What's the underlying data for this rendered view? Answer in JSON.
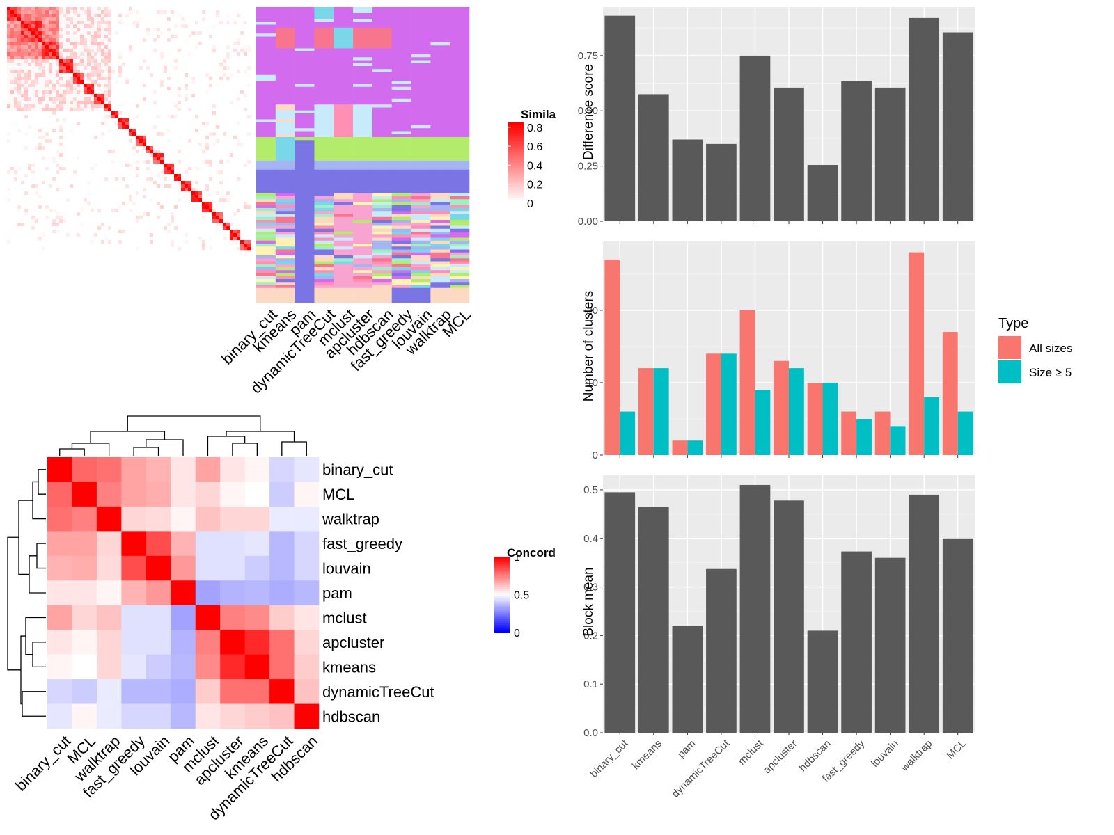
{
  "methods": [
    "binary_cut",
    "kmeans",
    "pam",
    "dynamicTreeCut",
    "mclust",
    "apcluster",
    "hdbscan",
    "fast_greedy",
    "louvain",
    "walktrap",
    "MCL"
  ],
  "colors": {
    "panel_bg": "#EBEBEB",
    "bar_dark": "#595959",
    "all_sizes": "#F8766D",
    "size_ge5": "#00BFC4",
    "heat_high": "#FF0000",
    "heat_mid": "#FFFFFF",
    "heat_low": "#0000FF"
  },
  "similarity_legend": {
    "title": "Simila",
    "ticks": [
      "0.8",
      "0.6",
      "0.4",
      "0.2",
      "0"
    ]
  },
  "concordance_legend": {
    "title": "Concord",
    "ticks": [
      "1",
      "0.5",
      "0"
    ]
  },
  "membership_palette": [
    "#D36BEF",
    "#F7768D",
    "#79D7E8",
    "#B3EC6A",
    "#A5B5F2",
    "#7B74E5",
    "#FFF2B3",
    "#F9A3D1",
    "#FCD9C2",
    "#C7EBFB",
    "#FF8FB5",
    "#9FEFC3"
  ],
  "chart_data": [
    {
      "type": "heatmap",
      "panel": "similarity-matrix",
      "legend_title": "Simila",
      "value_range": [
        0,
        0.85
      ],
      "n_terms": 200,
      "blocks_start_fraction": [
        0.0,
        0.06,
        0.14,
        0.22,
        0.27,
        0.32,
        0.36,
        0.4,
        0.43,
        0.46,
        0.5,
        0.53,
        0.57,
        0.6,
        0.64,
        0.68,
        0.72,
        0.76,
        0.8,
        0.84,
        0.88,
        0.92,
        0.95
      ]
    },
    {
      "type": "heatmap",
      "panel": "cluster-membership",
      "columns": [
        "binary_cut",
        "kmeans",
        "pam",
        "dynamicTreeCut",
        "mclust",
        "apcluster",
        "hdbscan",
        "fast_greedy",
        "louvain",
        "walktrap",
        "MCL"
      ]
    },
    {
      "type": "heatmap",
      "panel": "concordance",
      "legend_title": "Concord",
      "rows": [
        "binary_cut",
        "MCL",
        "walktrap",
        "fast_greedy",
        "louvain",
        "pam",
        "mclust",
        "apcluster",
        "kmeans",
        "dynamicTreeCut",
        "hdbscan"
      ],
      "columns": [
        "binary_cut",
        "MCL",
        "walktrap",
        "fast_greedy",
        "louvain",
        "pam",
        "mclust",
        "apcluster",
        "kmeans",
        "dynamicTreeCut",
        "hdbscan"
      ],
      "values": [
        [
          1.0,
          0.8,
          0.78,
          0.68,
          0.65,
          0.55,
          0.68,
          0.55,
          0.52,
          0.42,
          0.45
        ],
        [
          0.8,
          1.0,
          0.75,
          0.68,
          0.66,
          0.55,
          0.58,
          0.52,
          0.5,
          0.4,
          0.52
        ],
        [
          0.78,
          0.75,
          1.0,
          0.58,
          0.57,
          0.52,
          0.62,
          0.58,
          0.58,
          0.46,
          0.46
        ],
        [
          0.68,
          0.68,
          0.58,
          1.0,
          0.85,
          0.65,
          0.44,
          0.44,
          0.45,
          0.36,
          0.42
        ],
        [
          0.65,
          0.66,
          0.57,
          0.85,
          1.0,
          0.7,
          0.44,
          0.44,
          0.4,
          0.36,
          0.42
        ],
        [
          0.55,
          0.55,
          0.52,
          0.65,
          0.7,
          1.0,
          0.32,
          0.35,
          0.36,
          0.34,
          0.36
        ],
        [
          0.68,
          0.58,
          0.62,
          0.44,
          0.44,
          0.32,
          1.0,
          0.75,
          0.73,
          0.6,
          0.55
        ],
        [
          0.55,
          0.52,
          0.58,
          0.44,
          0.44,
          0.35,
          0.75,
          1.0,
          0.92,
          0.78,
          0.58
        ],
        [
          0.52,
          0.5,
          0.58,
          0.45,
          0.4,
          0.36,
          0.73,
          0.92,
          1.0,
          0.78,
          0.6
        ],
        [
          0.42,
          0.4,
          0.46,
          0.36,
          0.36,
          0.34,
          0.6,
          0.78,
          0.78,
          1.0,
          0.62
        ],
        [
          0.45,
          0.52,
          0.46,
          0.42,
          0.42,
          0.36,
          0.55,
          0.58,
          0.6,
          0.62,
          1.0
        ]
      ]
    },
    {
      "type": "bar",
      "panel": "difference-score",
      "categories": [
        "binary_cut",
        "kmeans",
        "pam",
        "dynamicTreeCut",
        "mclust",
        "apcluster",
        "hdbscan",
        "fast_greedy",
        "louvain",
        "walktrap",
        "MCL"
      ],
      "values": [
        0.93,
        0.575,
        0.37,
        0.35,
        0.75,
        0.605,
        0.255,
        0.635,
        0.605,
        0.92,
        0.855
      ],
      "ylabel": "Difference score",
      "ylim": [
        0,
        0.97
      ],
      "yticks": [
        0,
        0.25,
        0.5,
        0.75
      ],
      "ytick_labels": [
        "0.00",
        "0.25",
        "0.50",
        "0.75"
      ]
    },
    {
      "type": "bar",
      "panel": "number-of-clusters",
      "categories": [
        "binary_cut",
        "kmeans",
        "pam",
        "dynamicTreeCut",
        "mclust",
        "apcluster",
        "hdbscan",
        "fast_greedy",
        "louvain",
        "walktrap",
        "MCL"
      ],
      "series": [
        {
          "name": "All sizes",
          "values": [
            27,
            12,
            2,
            14,
            20,
            13,
            10,
            6,
            6,
            28,
            17
          ]
        },
        {
          "name": "Size ≥ 5",
          "values": [
            6,
            12,
            2,
            14,
            9,
            12,
            10,
            5,
            4,
            8,
            6
          ]
        }
      ],
      "ylabel": "Number of clusters",
      "ylim": [
        0,
        29.5
      ],
      "yticks": [
        0,
        10,
        20
      ],
      "ytick_labels": [
        "0",
        "10",
        "20"
      ],
      "legend_title": "Type",
      "legend_placement": "right"
    },
    {
      "type": "bar",
      "panel": "block-mean",
      "categories": [
        "binary_cut",
        "kmeans",
        "pam",
        "dynamicTreeCut",
        "mclust",
        "apcluster",
        "hdbscan",
        "fast_greedy",
        "louvain",
        "walktrap",
        "MCL"
      ],
      "values": [
        0.495,
        0.465,
        0.22,
        0.337,
        0.51,
        0.478,
        0.21,
        0.373,
        0.36,
        0.49,
        0.4
      ],
      "ylabel": "Block mean",
      "ylim": [
        0,
        0.53
      ],
      "yticks": [
        0,
        0.1,
        0.2,
        0.3,
        0.4,
        0.5
      ],
      "ytick_labels": [
        "0.0",
        "0.1",
        "0.2",
        "0.3",
        "0.4",
        "0.5"
      ]
    }
  ]
}
